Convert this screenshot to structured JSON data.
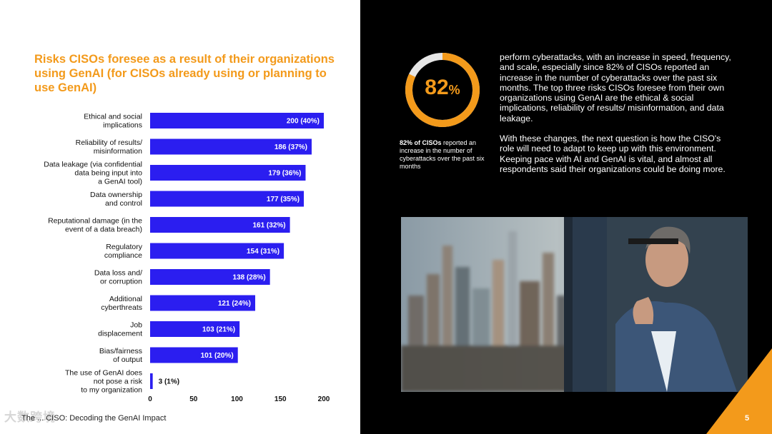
{
  "chart_title": "Risks CISOs foresee as a result of their organizations using GenAI (for CISOs already using or planning to use GenAI)",
  "chart_data": {
    "type": "bar",
    "orientation": "horizontal",
    "title": "Risks CISOs foresee as a result of their organizations using GenAI (for CISOs already using or planning to use GenAI)",
    "categories": [
      [
        "Ethical and social",
        "implications"
      ],
      [
        "Reliability of results/",
        "misinformation"
      ],
      [
        "Data leakage (via confidential",
        "data being input into",
        "a GenAI tool)"
      ],
      [
        "Data ownership",
        "and control"
      ],
      [
        "Reputational damage (in the",
        "event of a data breach)"
      ],
      [
        "Regulatory",
        "compliance"
      ],
      [
        "Data loss and/",
        "or corruption"
      ],
      [
        "Additional",
        "cyberthreats"
      ],
      [
        "Job",
        "displacement"
      ],
      [
        "Bias/fairness",
        "of output"
      ],
      [
        "The use of GenAI does",
        "not pose a risk",
        "to my organization"
      ]
    ],
    "values": [
      200,
      186,
      179,
      177,
      161,
      154,
      138,
      121,
      103,
      101,
      3
    ],
    "value_labels": [
      "200 (40%)",
      "186 (37%)",
      "179 (36%)",
      "177 (35%)",
      "161 (32%)",
      "154 (31%)",
      "138 (28%)",
      "121 (24%)",
      "103 (21%)",
      "101 (20%)",
      "3 (1%)"
    ],
    "xlim": [
      0,
      200
    ],
    "xticks": [
      0,
      50,
      100,
      150,
      200
    ],
    "bar_color": "#2b1ef0",
    "grid": false
  },
  "stat": {
    "value": "82",
    "unit": "%",
    "fraction": 0.82,
    "caption_bold": "82% of CISOs",
    "caption_rest": " reported an increase in the number of cyberattacks over the past six months"
  },
  "body": {
    "p1": "perform cyberattacks, with an increase in speed, frequency, and scale, especially since 82% of CISOs reported an increase in the number of cyberattacks over the past six months. The top three risks CISOs foresee from their own organizations using GenAI are the ethical & social implications, reliability of results/ misinformation, and data leakage.",
    "p2": "With these changes, the next question is how the CISO's role will need to adapt to keep up with this environment. Keeping pace with AI and GenAI is vital, and almost all respondents said their organizations could be doing more."
  },
  "footer": "The ... CISO: Decoding the GenAI Impact",
  "watermark": "大数跨境",
  "page_number": "5",
  "colors": {
    "accent": "#f39a1b",
    "bar": "#2b1ef0"
  }
}
